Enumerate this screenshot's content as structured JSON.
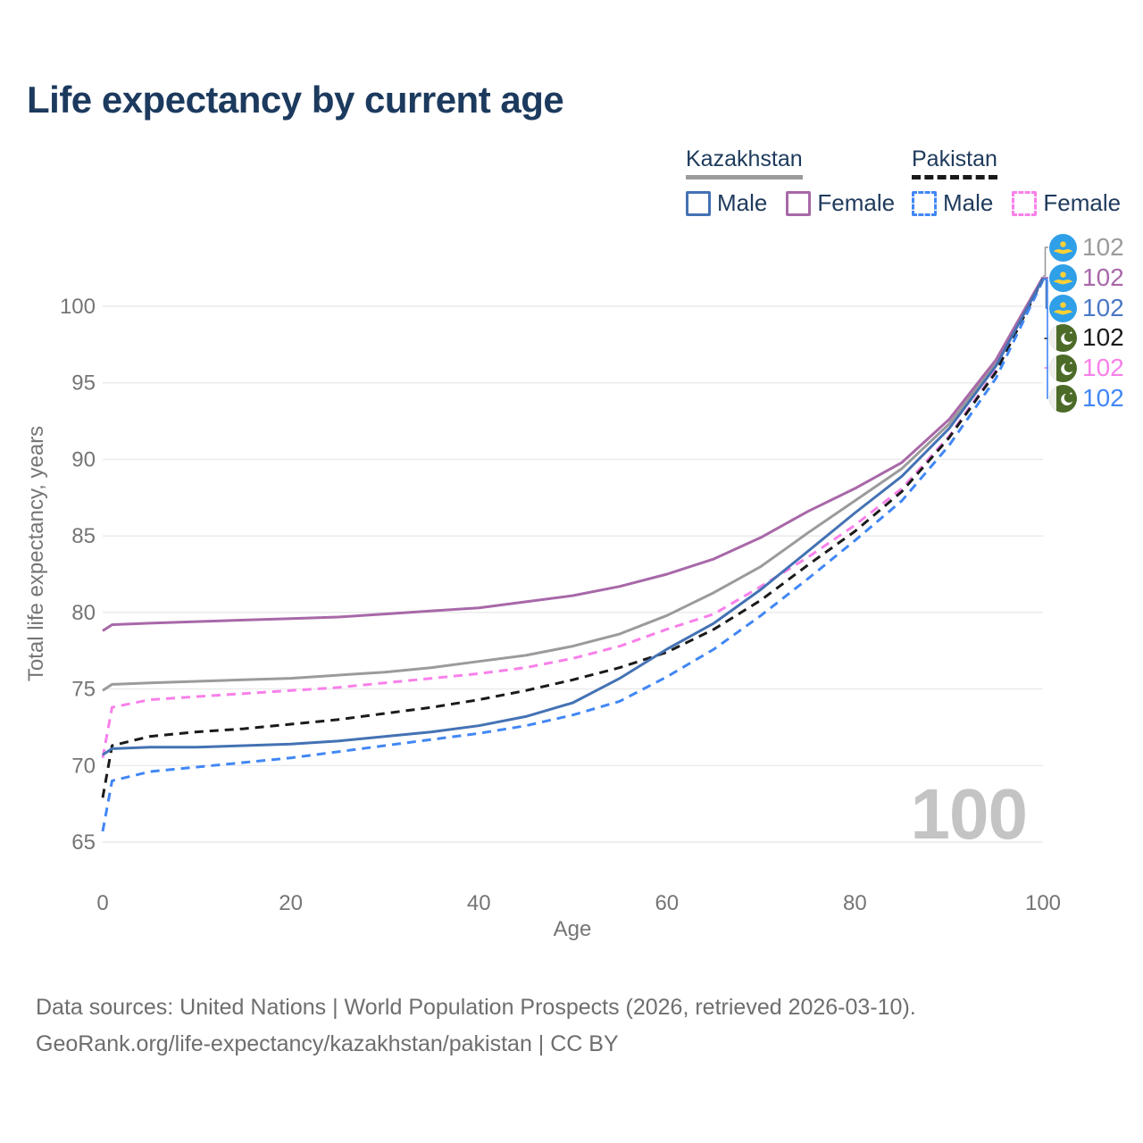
{
  "header": {
    "title": "Life expectancy by current age"
  },
  "legend": {
    "groups": [
      {
        "label": "Kazakhstan",
        "line_style": "solid",
        "swatch_color": "#9b9b9b",
        "items": [
          {
            "label": "Male",
            "color": "#4472b4",
            "style": "solid"
          },
          {
            "label": "Female",
            "color": "#a868a8",
            "style": "solid"
          }
        ]
      },
      {
        "label": "Pakistan",
        "line_style": "dashed",
        "swatch_color": "#1a1a1a",
        "items": [
          {
            "label": "Male",
            "color": "#4187f5",
            "style": "dashed"
          },
          {
            "label": "Female",
            "color": "#f880ea",
            "style": "dashed"
          }
        ]
      }
    ]
  },
  "chart_data": {
    "type": "line",
    "title": "Life expectancy by current age",
    "xlabel": "Age",
    "ylabel": "Total life expectancy, years",
    "xlim": [
      0,
      100
    ],
    "ylim": [
      65,
      103
    ],
    "xticks": [
      0,
      20,
      40,
      60,
      80,
      100
    ],
    "yticks": [
      65,
      70,
      75,
      80,
      85,
      90,
      95,
      100
    ],
    "grid": true,
    "legend_position": "top-right",
    "x": [
      0,
      1,
      5,
      10,
      15,
      20,
      25,
      30,
      35,
      40,
      45,
      50,
      55,
      60,
      65,
      70,
      75,
      80,
      85,
      90,
      95,
      100
    ],
    "series": [
      {
        "id": "kz_all",
        "name": "Kazakhstan both sexes",
        "color": "#9b9b9b",
        "dash": false,
        "values": [
          74.9,
          75.3,
          75.4,
          75.5,
          75.6,
          75.7,
          75.9,
          76.1,
          76.4,
          76.8,
          77.2,
          77.8,
          78.6,
          79.8,
          81.3,
          83.0,
          85.2,
          87.3,
          89.4,
          92.3,
          96.3,
          101.9
        ]
      },
      {
        "id": "kz_female",
        "name": "Kazakhstan female",
        "color": "#a868a8",
        "dash": false,
        "values": [
          78.8,
          79.2,
          79.3,
          79.4,
          79.5,
          79.6,
          79.7,
          79.9,
          80.1,
          80.3,
          80.7,
          81.1,
          81.7,
          82.5,
          83.5,
          84.9,
          86.6,
          88.1,
          89.8,
          92.6,
          96.5,
          101.9
        ]
      },
      {
        "id": "pk_female",
        "name": "Pakistan female",
        "color": "#f880ea",
        "dash": true,
        "values": [
          70.5,
          73.8,
          74.3,
          74.5,
          74.7,
          74.9,
          75.1,
          75.4,
          75.7,
          76.0,
          76.4,
          77.0,
          77.8,
          78.9,
          79.9,
          81.7,
          83.6,
          85.7,
          88.1,
          91.5,
          95.8,
          101.8
        ]
      },
      {
        "id": "pk_all",
        "name": "Pakistan both sexes",
        "color": "#1a1a1a",
        "dash": true,
        "values": [
          67.9,
          71.3,
          71.9,
          72.2,
          72.4,
          72.7,
          73.0,
          73.4,
          73.8,
          74.3,
          74.9,
          75.6,
          76.4,
          77.4,
          78.9,
          80.8,
          83.1,
          85.3,
          87.9,
          91.4,
          95.7,
          101.8
        ]
      },
      {
        "id": "pk_male",
        "name": "Pakistan male",
        "color": "#4187f5",
        "dash": true,
        "values": [
          65.7,
          69.0,
          69.6,
          69.9,
          70.2,
          70.5,
          70.9,
          71.3,
          71.7,
          72.1,
          72.6,
          73.3,
          74.2,
          75.8,
          77.6,
          79.8,
          82.2,
          84.7,
          87.3,
          90.9,
          95.3,
          101.7
        ]
      },
      {
        "id": "kz_male",
        "name": "Kazakhstan male",
        "color": "#4472b4",
        "dash": false,
        "values": [
          70.7,
          71.1,
          71.2,
          71.2,
          71.3,
          71.4,
          71.6,
          71.9,
          72.2,
          72.6,
          73.2,
          74.1,
          75.7,
          77.6,
          79.3,
          81.5,
          84.0,
          86.5,
          88.9,
          92.0,
          96.1,
          101.8
        ]
      }
    ]
  },
  "end_labels": [
    {
      "flag": "kz",
      "value": "102",
      "color": "#9b9b9b"
    },
    {
      "flag": "kz",
      "value": "102",
      "color": "#a868a8"
    },
    {
      "flag": "kz",
      "value": "102",
      "color": "#4a78c4"
    },
    {
      "flag": "pk",
      "value": "102",
      "color": "#1a1a1a"
    },
    {
      "flag": "pk",
      "value": "102",
      "color": "#f880ea"
    },
    {
      "flag": "pk",
      "value": "102",
      "color": "#4187f5"
    }
  ],
  "age_indicator": "100",
  "footer": {
    "line1": "Data sources: United Nations | World Population Prospects (2026, retrieved 2026-03-10).",
    "line2": "GeoRank.org/life-expectancy/kazakhstan/pakistan | CC BY"
  }
}
